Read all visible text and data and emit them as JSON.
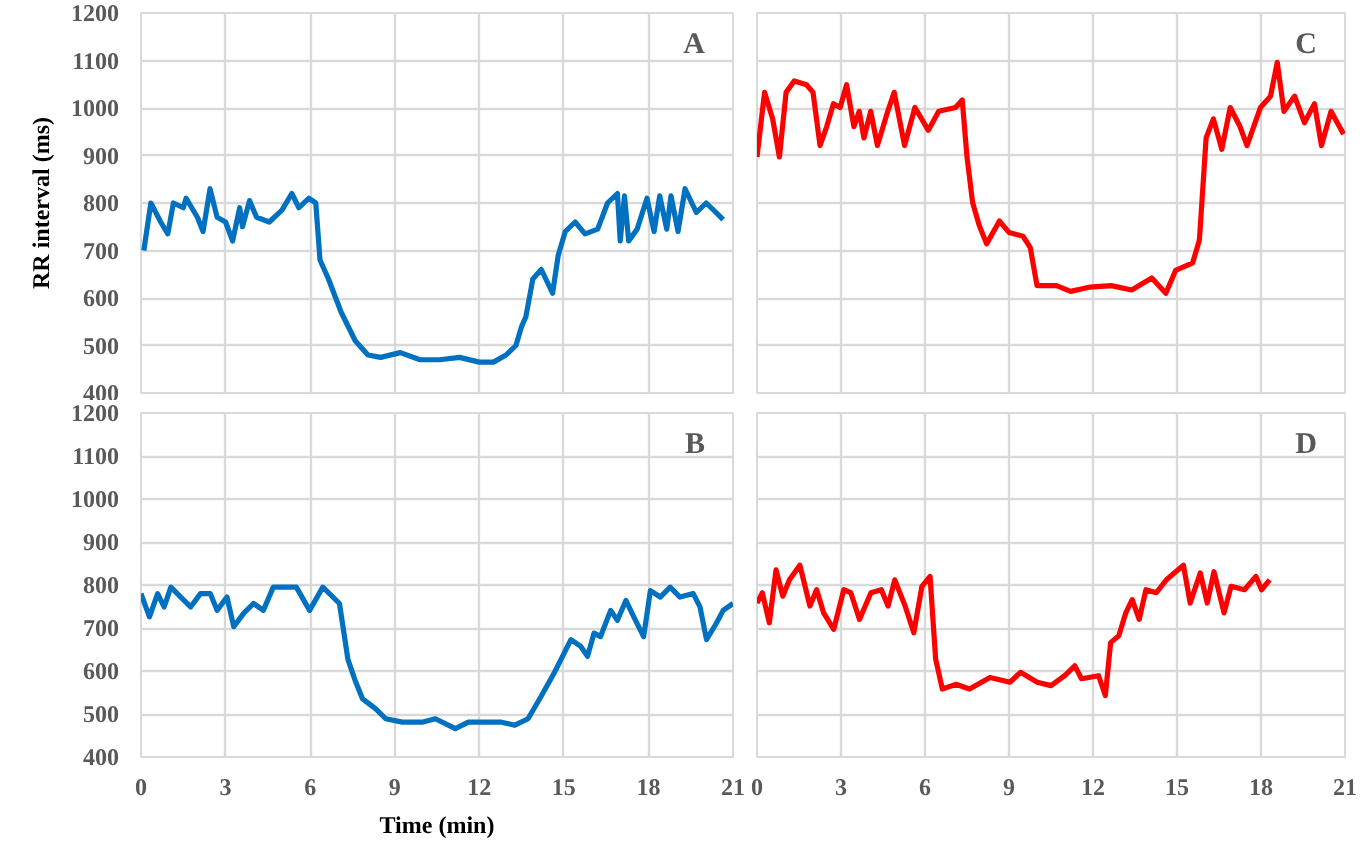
{
  "chart_data": [
    {
      "type": "line",
      "annotations": [
        "A"
      ],
      "ylabel": "RR interval (ms)",
      "xlim": [
        0,
        21
      ],
      "ylim": [
        400,
        1200
      ],
      "xticks": [
        0,
        3,
        6,
        9,
        12,
        15,
        18,
        21
      ],
      "yticks": [
        400,
        500,
        600,
        700,
        800,
        900,
        1000,
        1100,
        1200
      ],
      "grid": true,
      "tick_labels": "y",
      "series": [
        {
          "color": "#0070c0",
          "x": [
            0.1,
            0.35,
            0.7,
            0.95,
            1.15,
            1.5,
            1.6,
            2.0,
            2.2,
            2.45,
            2.7,
            3.0,
            3.25,
            3.5,
            3.6,
            3.85,
            4.1,
            4.55,
            5.0,
            5.35,
            5.6,
            5.95,
            6.2,
            6.35,
            6.65,
            7.1,
            7.6,
            8.05,
            8.5,
            9.2,
            9.9,
            10.6,
            11.3,
            12.0,
            12.5,
            12.95,
            13.3,
            13.5,
            13.65,
            13.9,
            14.2,
            14.6,
            14.8,
            15.05,
            15.4,
            15.75,
            16.2,
            16.55,
            16.9,
            17.0,
            17.15,
            17.3,
            17.6,
            17.95,
            18.2,
            18.4,
            18.65,
            18.8,
            19.05,
            19.3,
            19.7,
            20.05,
            20.4,
            20.65
          ],
          "values": [
            700,
            800,
            760,
            735,
            800,
            790,
            810,
            770,
            740,
            830,
            770,
            760,
            720,
            790,
            750,
            805,
            770,
            760,
            785,
            820,
            790,
            810,
            800,
            680,
            640,
            570,
            510,
            480,
            475,
            485,
            470,
            470,
            475,
            465,
            465,
            480,
            500,
            540,
            560,
            640,
            660,
            610,
            690,
            740,
            760,
            735,
            745,
            800,
            820,
            720,
            815,
            720,
            745,
            810,
            740,
            815,
            745,
            815,
            740,
            830,
            780,
            800,
            780,
            765
          ]
        }
      ]
    },
    {
      "type": "line",
      "annotations": [
        "B"
      ],
      "xlabel": "Time (min)",
      "xlim": [
        0,
        21
      ],
      "ylim": [
        400,
        1200
      ],
      "xticks": [
        0,
        3,
        6,
        9,
        12,
        15,
        18,
        21
      ],
      "yticks": [
        400,
        500,
        600,
        700,
        800,
        900,
        1000,
        1100,
        1200
      ],
      "grid": true,
      "series": [
        {
          "color": "#0070c0",
          "x": [
            0,
            0.3,
            0.59,
            0.82,
            1.06,
            1.41,
            1.76,
            2.11,
            2.46,
            2.7,
            3.05,
            3.29,
            3.64,
            3.99,
            4.34,
            4.69,
            5.51,
            5.98,
            6.45,
            7.04,
            7.34,
            7.58,
            7.86,
            8.33,
            8.68,
            9.27,
            9.97,
            10.44,
            11.15,
            11.61,
            12.08,
            12.79,
            13.26,
            13.73,
            14.2,
            14.66,
            14.9,
            15.25,
            15.6,
            15.84,
            16.07,
            16.3,
            16.66,
            16.9,
            17.2,
            17.48,
            17.83,
            18.07,
            18.42,
            18.77,
            19.12,
            19.59,
            19.83,
            20.06,
            20.41,
            20.65,
            21.0
          ],
          "values": [
            780,
            726,
            780,
            749,
            795,
            772,
            749,
            780,
            780,
            741,
            772,
            703,
            734,
            757,
            741,
            795,
            795,
            741,
            795,
            757,
            627,
            581,
            535,
            512,
            489,
            481,
            481,
            489,
            466,
            481,
            481,
            481,
            474,
            489,
            542,
            596,
            627,
            673,
            657,
            634,
            688,
            680,
            741,
            718,
            764,
            726,
            680,
            787,
            772,
            795,
            772,
            780,
            749,
            673,
            711,
            741,
            757
          ]
        }
      ]
    },
    {
      "type": "line",
      "annotations": [
        "C"
      ],
      "xlim": [
        0,
        21
      ],
      "ylim": [
        400,
        1200
      ],
      "xticks": [
        0,
        3,
        6,
        9,
        12,
        15,
        18,
        21
      ],
      "yticks": [
        400,
        500,
        600,
        700,
        800,
        900,
        1000,
        1100,
        1200
      ],
      "grid": true,
      "tick_labels": false,
      "series": [
        {
          "color": "#ff0000",
          "x": [
            0,
            0.27,
            0.56,
            0.8,
            1.04,
            1.33,
            1.77,
            2.0,
            2.25,
            2.49,
            2.73,
            2.97,
            3.2,
            3.46,
            3.65,
            3.82,
            4.06,
            4.3,
            4.67,
            4.9,
            5.27,
            5.64,
            6.12,
            6.49,
            7.09,
            7.33,
            7.5,
            7.7,
            7.93,
            8.2,
            8.66,
            9.0,
            9.5,
            9.76,
            10.0,
            10.7,
            11.2,
            11.9,
            12.65,
            13.38,
            14.1,
            14.6,
            14.95,
            15.56,
            15.8,
            16.04,
            16.3,
            16.6,
            16.9,
            17.25,
            17.5,
            17.98,
            18.34,
            18.58,
            18.82,
            19.2,
            19.55,
            19.91,
            20.16,
            20.5,
            20.95
          ],
          "values": [
            897,
            1033,
            977,
            897,
            1033,
            1057,
            1049,
            1033,
            921,
            961,
            1009,
            1001,
            1049,
            961,
            993,
            937,
            993,
            921,
            993,
            1033,
            921,
            1001,
            953,
            993,
            1001,
            1017,
            897,
            801,
            754,
            714,
            762,
            738,
            730,
            706,
            626,
            626,
            614,
            623,
            626,
            617,
            642,
            610,
            658,
            674,
            722,
            937,
            977,
            913,
            1001,
            961,
            921,
            1001,
            1025,
            1096,
            993,
            1025,
            969,
            1009,
            921,
            993,
            945
          ]
        }
      ]
    },
    {
      "type": "line",
      "annotations": [
        "D"
      ],
      "xlim": [
        0,
        21
      ],
      "ylim": [
        400,
        1200
      ],
      "xticks": [
        0,
        3,
        6,
        9,
        12,
        15,
        18,
        21
      ],
      "yticks": [
        400,
        500,
        600,
        700,
        800,
        900,
        1000,
        1100,
        1200
      ],
      "grid": true,
      "tick_labels": "x",
      "series": [
        {
          "color": "#ff0000",
          "x": [
            0,
            0.19,
            0.44,
            0.68,
            0.92,
            1.16,
            1.53,
            1.89,
            2.13,
            2.38,
            2.74,
            3.1,
            3.35,
            3.66,
            4.07,
            4.44,
            4.68,
            4.92,
            5.29,
            5.6,
            5.89,
            6.18,
            6.38,
            6.62,
            7.1,
            7.59,
            8.32,
            9.04,
            9.41,
            10.01,
            10.5,
            10.99,
            11.35,
            11.59,
            12.2,
            12.44,
            12.63,
            12.92,
            13.17,
            13.4,
            13.65,
            13.89,
            14.26,
            14.62,
            15.23,
            15.47,
            15.83,
            16.08,
            16.32,
            16.68,
            16.93,
            17.41,
            17.82,
            18.02,
            18.31
          ],
          "values": [
            758,
            782,
            712,
            835,
            774,
            812,
            846,
            751,
            789,
            735,
            697,
            789,
            782,
            720,
            782,
            789,
            751,
            812,
            751,
            689,
            797,
            820,
            628,
            558,
            569,
            558,
            585,
            574,
            597,
            574,
            566,
            589,
            612,
            582,
            589,
            543,
            666,
            682,
            735,
            766,
            720,
            789,
            782,
            812,
            846,
            758,
            828,
            758,
            831,
            735,
            797,
            789,
            820,
            789,
            812
          ]
        }
      ]
    }
  ]
}
